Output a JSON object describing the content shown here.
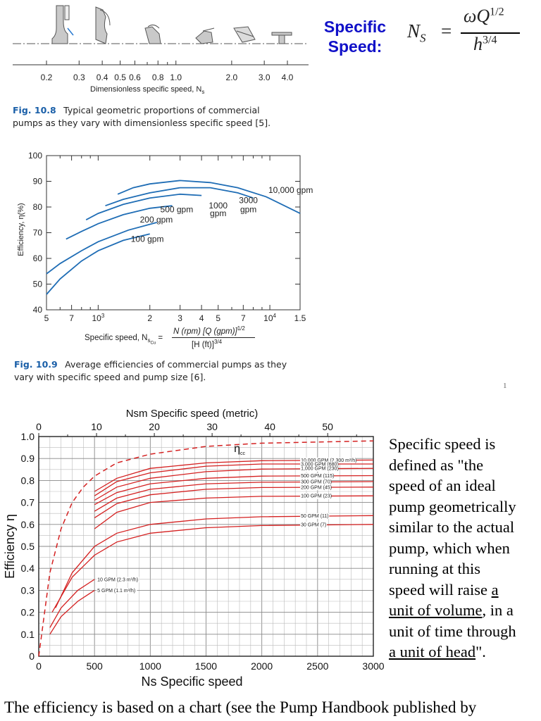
{
  "fig108": {
    "axis_label": "Dimensionless specific speed, N",
    "axis_label_sub": "s",
    "ticks": [
      "0.2",
      "0.3",
      "0.4",
      "0.5",
      "0.6",
      "0.8",
      "1.0",
      "2.0",
      "3.0",
      "4.0"
    ],
    "caption_label": "Fig. 10.8",
    "caption_line1": "Typical geometric proportions of commercial",
    "caption_line2": "pumps as they vary with dimensionless specific speed [5]."
  },
  "specific_speed": {
    "title_line1": "Specific",
    "title_line2": "Speed:",
    "formula_lhs": "N",
    "formula_lhs_sub": "S",
    "formula_eq": "=",
    "formula_num": "ωQ",
    "formula_num_exp": "1/2",
    "formula_den": "h",
    "formula_den_exp": "3/4"
  },
  "fig109": {
    "caption_label": "Fig. 10.9",
    "caption_line1": "Average efficiencies of commercial pumps as they",
    "caption_line2": "vary with specific speed and pump size [6].",
    "xlabel_prefix": "Specific speed, N",
    "xlabel_sub": "s",
    "xlabel_sub2": "Cu",
    "xlabel_eq": "=",
    "xlabel_num": "N (rpm) [Q (gpm)]",
    "xlabel_num_exp": "1/2",
    "xlabel_den": "[H (ft)]",
    "xlabel_den_exp": "3/4",
    "ylabel": "Efficiency, η(%)",
    "page_number": "1"
  },
  "chart_data": [
    {
      "type": "line",
      "title": "",
      "xlabel": "Specific speed, N_sCu = N (rpm) [Q (gpm)]^1/2 / [H (ft)]^3/4",
      "ylabel": "Efficiency, η(%)",
      "x_scale": "log",
      "xlim": [
        500,
        15000
      ],
      "ylim": [
        40,
        100
      ],
      "x_ticks": [
        500,
        700,
        1000,
        2000,
        3000,
        4000,
        5000,
        7000,
        10000,
        15000
      ],
      "x_tick_labels": [
        "5",
        "7",
        "10^3",
        "2",
        "3",
        "4",
        "5",
        "7",
        "10^4",
        "1.5"
      ],
      "y_ticks": [
        40,
        50,
        60,
        70,
        80,
        90,
        100
      ],
      "grid": false,
      "series": [
        {
          "name": "100 gpm",
          "x": [
            500,
            600,
            800,
            1000,
            1400,
            2000
          ],
          "y": [
            46,
            52,
            59,
            63,
            67,
            69.5
          ]
        },
        {
          "name": "200 gpm",
          "x": [
            500,
            600,
            800,
            1000,
            1500,
            2200
          ],
          "y": [
            54,
            58,
            63,
            66.5,
            71,
            74
          ]
        },
        {
          "name": "500 gpm",
          "x": [
            650,
            800,
            1000,
            1400,
            2000,
            2700
          ],
          "y": [
            67.5,
            70.5,
            73.5,
            77,
            79.5,
            80.5
          ]
        },
        {
          "name": "1000 gpm",
          "x": [
            850,
            1000,
            1400,
            2000,
            3000,
            4000
          ],
          "y": [
            75,
            77.5,
            81,
            83.5,
            85,
            84.5
          ]
        },
        {
          "name": "3000 gpm",
          "x": [
            1100,
            1400,
            2000,
            3000,
            4500,
            6500,
            8000
          ],
          "y": [
            80.5,
            83,
            85.5,
            87.5,
            87.5,
            85.5,
            83.5
          ]
        },
        {
          "name": "10,000 gpm",
          "x": [
            1300,
            1600,
            2000,
            3000,
            4500,
            6500,
            9500,
            15000
          ],
          "y": [
            85,
            87.5,
            89,
            90.3,
            89.5,
            87.5,
            84,
            77.5
          ]
        }
      ],
      "annotations": [
        "10,000 gpm",
        "500 gpm",
        "1000",
        "gpm",
        "3000",
        "gpm",
        "200 gpm",
        "100 gpm"
      ]
    },
    {
      "type": "line",
      "title": "",
      "xlabel": "Ns  Specific speed",
      "x2label": "Nsm  Specific speed  (metric)",
      "ylabel": "Efficiency η",
      "xlim": [
        0,
        3000
      ],
      "x2lim": [
        0,
        57.9
      ],
      "ylim": [
        0,
        1.0
      ],
      "x_ticks": [
        0,
        500,
        1000,
        1500,
        2000,
        2500,
        3000
      ],
      "x2_ticks": [
        0,
        10,
        20,
        30,
        40,
        50
      ],
      "y_ticks": [
        0,
        0.1,
        0.2,
        0.3,
        0.4,
        0.5,
        0.6,
        0.7,
        0.8,
        0.9,
        1.0
      ],
      "y_tick_labels": [
        "0",
        "0.1",
        "0.2",
        "0.3",
        "0.4",
        "0.5",
        "0.6",
        "0.7",
        "0.8",
        "0.9",
        "1.0"
      ],
      "grid": true,
      "envelope_label": "η",
      "envelope_label_sub": "cc",
      "envelope": {
        "x": [
          0,
          100,
          200,
          300,
          400,
          500,
          700,
          1000,
          1500,
          2000,
          3000
        ],
        "y": [
          0.0,
          0.38,
          0.58,
          0.7,
          0.77,
          0.82,
          0.88,
          0.92,
          0.955,
          0.97,
          0.98
        ]
      },
      "series": [
        {
          "name": "10,000 GPM (2,300 m³/h)",
          "x": [
            500,
            700,
            1000,
            1500,
            2000,
            3000
          ],
          "y": [
            0.75,
            0.81,
            0.855,
            0.88,
            0.89,
            0.893
          ]
        },
        {
          "name": "3,000 GPM (680)",
          "x": [
            500,
            700,
            1000,
            1500,
            2000,
            3000
          ],
          "y": [
            0.73,
            0.795,
            0.835,
            0.865,
            0.875,
            0.875
          ]
        },
        {
          "name": "1,000 GPM (230)",
          "x": [
            500,
            700,
            1000,
            1500,
            2000,
            3000
          ],
          "y": [
            0.71,
            0.77,
            0.81,
            0.84,
            0.852,
            0.855
          ]
        },
        {
          "name": "500 GPM (115)",
          "x": [
            500,
            700,
            1000,
            1500,
            2000,
            3000
          ],
          "y": [
            0.69,
            0.745,
            0.785,
            0.81,
            0.82,
            0.822
          ]
        },
        {
          "name": "300 GPM (70)",
          "x": [
            500,
            700,
            1000,
            1500,
            2000,
            3000
          ],
          "y": [
            0.66,
            0.72,
            0.76,
            0.785,
            0.792,
            0.795
          ]
        },
        {
          "name": "200 GPM (45)",
          "x": [
            500,
            700,
            1000,
            1500,
            2000,
            3000
          ],
          "y": [
            0.63,
            0.695,
            0.735,
            0.76,
            0.768,
            0.77
          ]
        },
        {
          "name": "100 GPM (23)",
          "x": [
            500,
            700,
            1000,
            1500,
            2000,
            3000
          ],
          "y": [
            0.58,
            0.655,
            0.7,
            0.72,
            0.728,
            0.73
          ]
        },
        {
          "name": "50 GPM (11)",
          "x": [
            150,
            300,
            500,
            700,
            1000,
            1500,
            2000,
            3000
          ],
          "y": [
            0.22,
            0.38,
            0.5,
            0.56,
            0.6,
            0.625,
            0.635,
            0.64
          ]
        },
        {
          "name": "30 GPM (7)",
          "x": [
            120,
            300,
            500,
            700,
            1000,
            1500,
            2000,
            3000
          ],
          "y": [
            0.2,
            0.36,
            0.46,
            0.52,
            0.56,
            0.585,
            0.595,
            0.6
          ]
        },
        {
          "name": "10 GPM (2.3 m³/h)",
          "x": [
            100,
            200,
            350,
            500
          ],
          "y": [
            0.13,
            0.22,
            0.3,
            0.35
          ]
        },
        {
          "name": "5 GPM (1.1 m³/h)",
          "x": [
            100,
            200,
            350,
            500
          ],
          "y": [
            0.1,
            0.18,
            0.25,
            0.3
          ]
        }
      ]
    }
  ],
  "definition": {
    "line1": "Specific speed is",
    "line2": "defined as \"the",
    "line3": "speed of an ideal",
    "line4": "pump geometrically",
    "line5": "similar to the actual",
    "line6": "pump, which when",
    "line7": "running at this",
    "line8_pre": "speed will raise ",
    "line8_u": "a",
    "line9_u": "unit of volume",
    "line9_post": ", in a",
    "line10": "unit of time through",
    "line11_u": "a unit of head",
    "line11_post": "\"."
  },
  "bottom_text": "The efficiency is based on a chart (see the Pump Handbook published by"
}
